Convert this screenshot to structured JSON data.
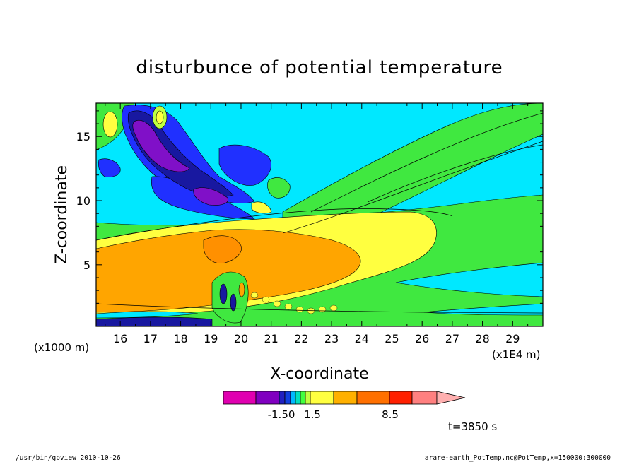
{
  "chart_data": {
    "type": "contour",
    "title": "disturbunce of potential temperature",
    "xlabel": "X-coordinate",
    "ylabel": "Z-coordinate",
    "x_unit": "(x1E4 m)",
    "y_unit": "(x1000 m)",
    "x_range": [
      15.2,
      30.0
    ],
    "y_range": [
      0.2,
      17.6
    ],
    "x_ticks": [
      16,
      17,
      18,
      19,
      20,
      21,
      22,
      23,
      24,
      25,
      26,
      27,
      28,
      29
    ],
    "y_ticks": [
      5,
      10,
      15
    ],
    "colorbar": {
      "colors": [
        "#e000b0",
        "#8000c0",
        "#2020c0",
        "#1040e0",
        "#00b8ff",
        "#00e0c0",
        "#40ff40",
        "#c0ff40",
        "#ffff40",
        "#ffb000",
        "#ff7000",
        "#ff2000",
        "#ff8080",
        "#ffb0b0"
      ],
      "labels": [
        {
          "value": -1.5,
          "text": "-1.50"
        },
        {
          "value": 1.5,
          "text": "1.5"
        },
        {
          "value": 8.5,
          "text": "8.5"
        }
      ]
    },
    "time_label": "t=3850 s",
    "footer_left": "/usr/bin/gpview   2010-10-26",
    "footer_right": "arare-earth_PotTemp.nc@PotTemp,x=150000:300000"
  }
}
